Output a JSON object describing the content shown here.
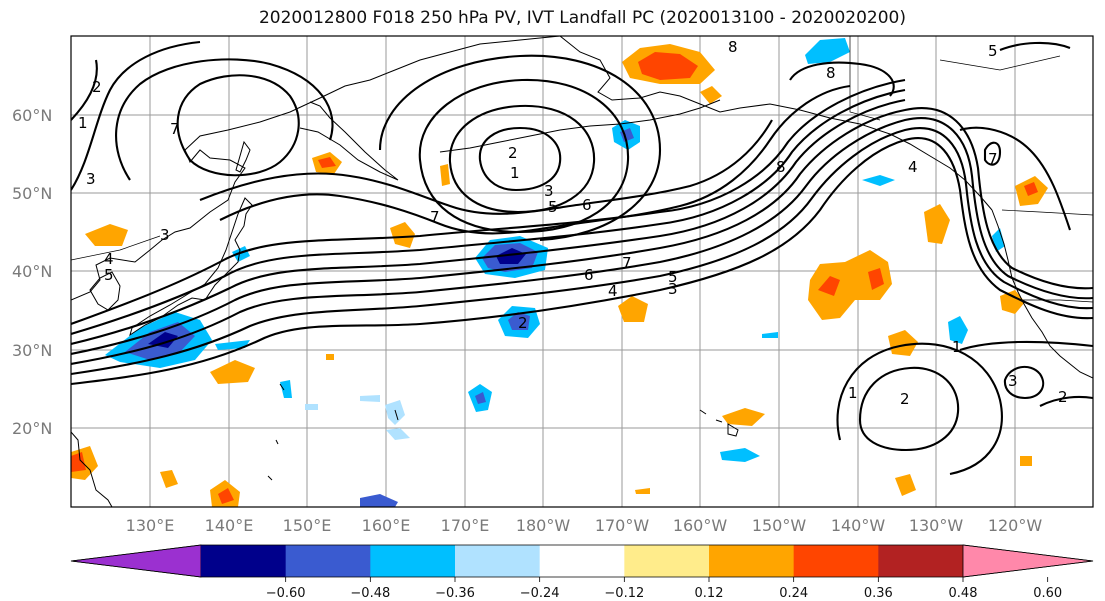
{
  "title": "2020012800 F018 250 hPa PV, IVT Landfall PC (2020013100 - 2020020200)",
  "lat_labels": [
    "60°N",
    "50°N",
    "40°N",
    "30°N",
    "20°N"
  ],
  "lon_labels": [
    "130°E",
    "140°E",
    "150°E",
    "160°E",
    "170°E",
    "180°W",
    "170°W",
    "160°W",
    "150°W",
    "140°W",
    "130°W",
    "120°W"
  ],
  "colorbar": {
    "ticks": [
      "−0.60",
      "−0.48",
      "−0.36",
      "−0.24",
      "−0.12",
      "0.12",
      "0.24",
      "0.36",
      "0.48",
      "0.60"
    ],
    "colors": [
      "#9b30d0",
      "#00008b",
      "#3a5bd0",
      "#00bfff",
      "#b0e2ff",
      "#ffffff",
      "#ffec8b",
      "#ffa500",
      "#ff4500",
      "#b22222",
      "#ff88aa"
    ]
  },
  "contour_labels": [
    "2",
    "1",
    "7",
    "3",
    "4",
    "5",
    "3",
    "2",
    "1",
    "3",
    "5",
    "6",
    "7",
    "7",
    "6",
    "5",
    "4",
    "3",
    "2",
    "8",
    "8",
    "4",
    "7",
    "1",
    "1",
    "2",
    "3",
    "2",
    "5",
    "8"
  ]
}
